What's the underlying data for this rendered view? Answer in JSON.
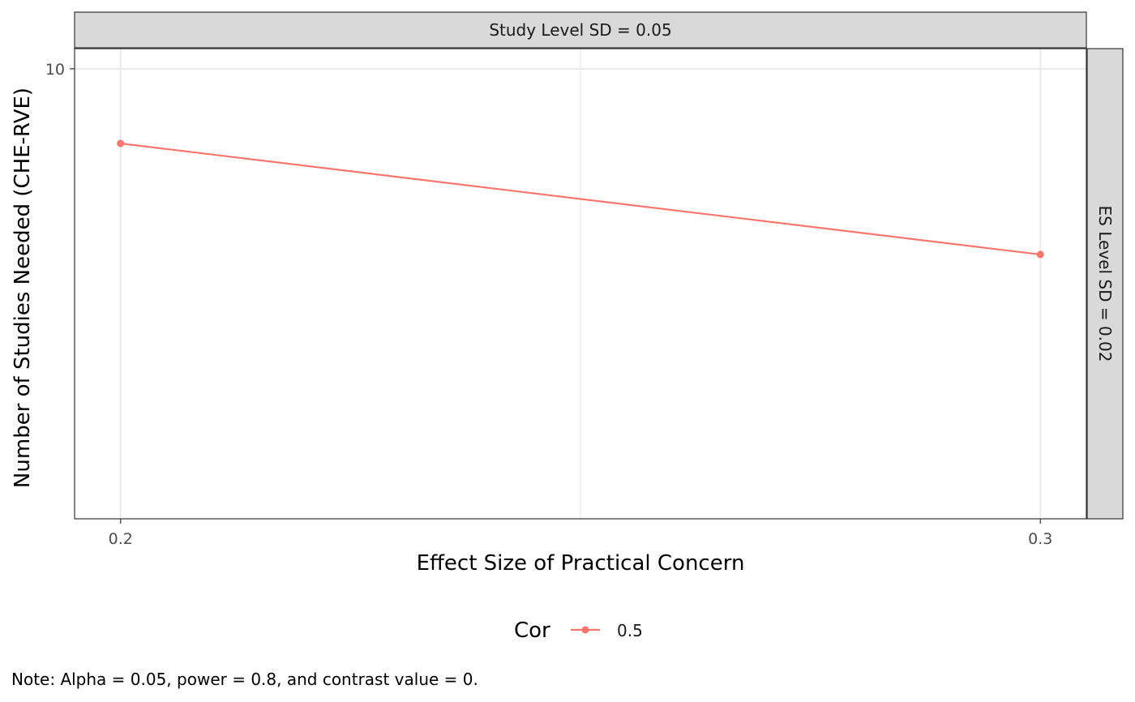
{
  "chart_data": {
    "type": "line",
    "facet_top": "Study Level SD = 0.05",
    "facet_right": "ES Level SD = 0.02",
    "xlabel": "Effect Size of Practical Concern",
    "ylabel": "Number of Studies Needed (CHE-RVE)",
    "x_ticks": [
      {
        "value": 0.2,
        "label": "0.2"
      },
      {
        "value": 0.3,
        "label": "0.3"
      }
    ],
    "y_ticks": [
      {
        "value": 10,
        "label": "10"
      }
    ],
    "xlim": [
      0.195,
      0.305
    ],
    "ylim": [
      7.77,
      10.1
    ],
    "grid": true,
    "legend": {
      "title": "Cor",
      "position": "bottom"
    },
    "series": [
      {
        "name": "0.5",
        "color": "#F8766D",
        "x": [
          0.2,
          0.3
        ],
        "y": [
          9.63,
          9.08
        ]
      }
    ],
    "caption": "Note: Alpha = 0.05, power = 0.8, and contrast value = 0."
  }
}
